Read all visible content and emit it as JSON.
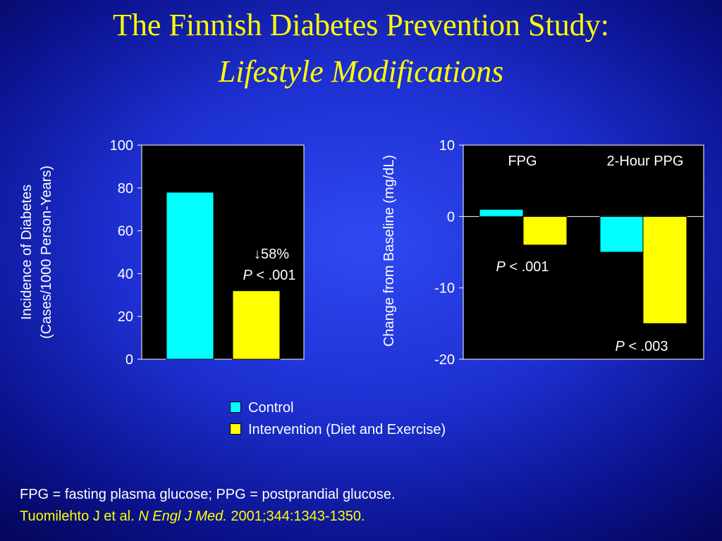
{
  "slide": {
    "title_line1": "The Finnish Diabetes Prevention Study:",
    "title_line2": "Lifestyle Modifications"
  },
  "colors": {
    "control": "#00ffff",
    "intervention": "#ffff00",
    "plot_bg": "#000000",
    "text": "#ffffff",
    "accent": "#ffff00"
  },
  "chart_data": [
    {
      "type": "bar",
      "ylabel_line1": "Incidence of Diabetes",
      "ylabel_line2": "(Cases/1000 Person-Years)",
      "ylim": [
        0,
        100
      ],
      "yticks": [
        "100",
        "80",
        "60",
        "40",
        "20",
        "0"
      ],
      "ytick_values": [
        100,
        80,
        60,
        40,
        20,
        0
      ],
      "series": [
        {
          "name": "Control",
          "values": [
            78
          ]
        },
        {
          "name": "Intervention (Diet and Exercise)",
          "values": [
            32
          ]
        }
      ],
      "annotation": {
        "arrow_icon": "arrow-down-icon",
        "arrow": "↓",
        "text": "58%",
        "p_italic": "P",
        "p_rest": " < .001"
      }
    },
    {
      "type": "bar",
      "ylabel": "Change from Baseline (mg/dL)",
      "ylim": [
        -20,
        10
      ],
      "yticks": [
        "10",
        "0",
        "-10",
        "-20"
      ],
      "ytick_values": [
        10,
        0,
        -10,
        -20
      ],
      "categories": [
        "FPG",
        "2-Hour PPG"
      ],
      "series": [
        {
          "name": "Control",
          "values": [
            1,
            -5
          ]
        },
        {
          "name": "Intervention (Diet and Exercise)",
          "values": [
            -4,
            -15
          ]
        }
      ],
      "annotations": [
        {
          "p_italic": "P",
          "p_rest": " < .001"
        },
        {
          "p_italic": "P",
          "p_rest": " < .003"
        }
      ]
    }
  ],
  "legend": {
    "items": [
      "Control",
      "Intervention (Diet and Exercise)"
    ]
  },
  "footer": {
    "line1": "FPG = fasting plasma glucose; PPG = postprandial glucose.",
    "citation_authors": "Tuomilehto J et al. ",
    "citation_journal": "N Engl J Med.",
    "citation_rest": " 2001;344:1343-1350."
  }
}
